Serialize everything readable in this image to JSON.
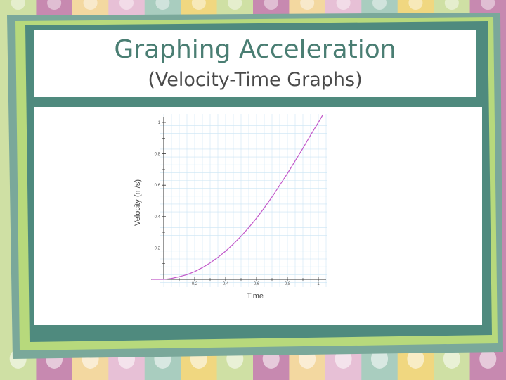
{
  "slide": {
    "title": "Graphing Acceleration",
    "subtitle": "(Velocity-Time Graphs)"
  },
  "colors": {
    "stripes": [
      "#cfe0a4",
      "#c789b0",
      "#f3d8a0",
      "#e7c0d6",
      "#a9cdbf",
      "#f0d780"
    ],
    "outer_frame": "#7aa89a",
    "green_band": "#b7d97c",
    "inner_teal": "#4f8a7e",
    "title_color": "#4a7e73",
    "curve_color": "#c257c9",
    "grid_color": "#cbe5f4"
  },
  "chart_data": {
    "type": "line",
    "xlabel": "Time",
    "ylabel": "Velocity (m/s)",
    "xlim": [
      -0.1,
      1.05
    ],
    "ylim": [
      -0.02,
      1.05
    ],
    "xticks": [
      0.2,
      0.4,
      0.6,
      0.8,
      1
    ],
    "xtick_labels": [
      "0.2",
      "0.4",
      "0.6",
      "0.8",
      "1"
    ],
    "yticks": [
      0.2,
      0.4,
      0.6,
      0.8,
      1
    ],
    "ytick_labels": [
      "0.2",
      "0.4",
      "0.6",
      "0.8",
      "1"
    ],
    "grid": true,
    "legend": "none",
    "series": [
      {
        "x": [
          -0.08,
          0.0,
          0.02,
          0.05,
          0.1,
          0.15,
          0.2,
          0.25,
          0.3,
          0.35,
          0.4,
          0.45,
          0.5,
          0.55,
          0.6,
          0.65,
          0.7,
          0.75,
          0.8,
          0.85,
          0.9,
          0.95,
          1.0,
          1.03
        ],
        "y": [
          0.0,
          0.0,
          0.002,
          0.006,
          0.017,
          0.03,
          0.05,
          0.075,
          0.105,
          0.14,
          0.18,
          0.225,
          0.275,
          0.33,
          0.39,
          0.455,
          0.525,
          0.6,
          0.675,
          0.755,
          0.835,
          0.92,
          1.0,
          1.05
        ]
      }
    ]
  }
}
